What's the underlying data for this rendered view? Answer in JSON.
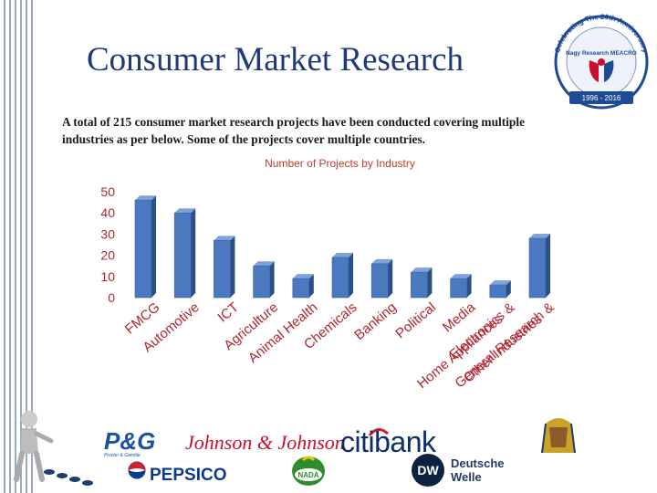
{
  "header": {
    "title": "Consumer Market Research",
    "description": "A total of 215 consumer market research projects have been conducted covering multiple industries as per below. Some of the projects cover multiple countries."
  },
  "badge": {
    "arc_text": "Celebrating The 20th Anniversary",
    "name": "Nagy Research MEACRO",
    "years": "1996 - 2016"
  },
  "chart_data": {
    "type": "bar",
    "title": "Number of Projects by Industry",
    "categories": [
      "FMCG",
      "Automotive",
      "ICT",
      "Agriculture",
      "Animal Health",
      "Chemicals",
      "Banking",
      "Political",
      "Media",
      "Electronics & Home Appliances",
      "General Research & Other Industries"
    ],
    "category_lines": [
      [
        "FMCG"
      ],
      [
        "Automotive"
      ],
      [
        "ICT"
      ],
      [
        "Agriculture"
      ],
      [
        "Animal Health"
      ],
      [
        "Chemicals"
      ],
      [
        "Banking"
      ],
      [
        "Political"
      ],
      [
        "Media"
      ],
      [
        "Electronics &",
        "Home Appliances"
      ],
      [
        "General Research &",
        "Other Industries"
      ]
    ],
    "values": [
      46,
      40,
      27,
      15,
      9,
      19,
      16,
      12,
      9,
      6,
      28
    ],
    "ylim": [
      0,
      50
    ],
    "yticks": [
      "0",
      "10",
      "20",
      "30",
      "40",
      "50"
    ],
    "xlabel": "",
    "ylabel": "",
    "grid": false,
    "legend": "none",
    "bar_color": "#4a79c0",
    "bar_side_color": "#2b4f86",
    "label_color": "#b3242e",
    "tick_color": "#b3242e"
  },
  "logos": {
    "pg_main": "P&G",
    "pg_sub": "Procter & Gamble",
    "jj": "Johnson & Johnson",
    "citi": "citibank",
    "pepsico": "PEPSICO",
    "nada": "NADA",
    "dw": "DW",
    "dw_line1": "Deutsche",
    "dw_line2": "Welle"
  }
}
